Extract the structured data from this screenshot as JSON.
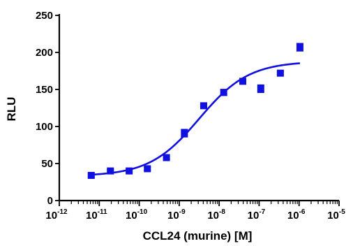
{
  "chart_data": {
    "type": "scatter",
    "xlabel": "CCL24 (murine) [M]",
    "ylabel": "RLU",
    "x_scale": "log",
    "xlim": [
      1e-12,
      1e-05
    ],
    "ylim": [
      0,
      250
    ],
    "yticks": [
      0,
      50,
      100,
      150,
      200,
      250
    ],
    "xtick_exponents": [
      -12,
      -11,
      -10,
      -9,
      -8,
      -7,
      -6,
      -5
    ],
    "xtick_base": "10",
    "grid": false,
    "legend": "none",
    "colors": {
      "series": "#1010e0",
      "axes": "#000000"
    },
    "series": [
      {
        "marker": "square",
        "x": [
          6.3e-12,
          1.9e-11,
          5.6e-11,
          1.6e-10,
          4.8e-10,
          1.35e-09,
          4.1e-09,
          1.3e-08,
          3.9e-08,
          1.1e-07,
          3.4e-07,
          1.05e-06
        ],
        "y": [
          34,
          40,
          40,
          43,
          58,
          91,
          128,
          146,
          161,
          151,
          172,
          207
        ],
        "error": [
          2,
          2,
          2,
          2,
          2,
          5,
          2,
          4,
          2,
          5,
          2,
          5
        ]
      }
    ],
    "fit": {
      "type": "sigmoidal dose-response",
      "bottom": 33,
      "top": 188,
      "log_ec50": -8.5,
      "hill_slope": 0.7,
      "x_range": [
        6.3e-12,
        1.05e-06
      ]
    }
  }
}
